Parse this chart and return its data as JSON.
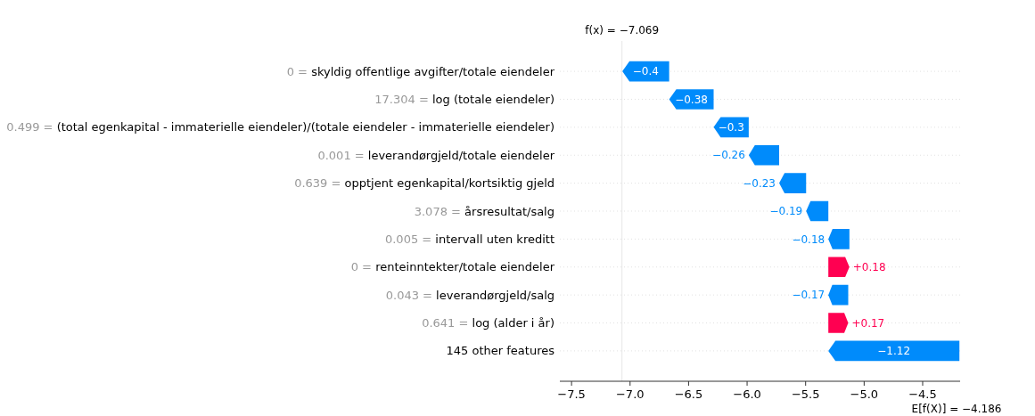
{
  "chart_data": {
    "type": "bar",
    "orientation": "horizontal",
    "categories": [
      "0 = skyldig offentlige avgifter/totale eiendeler",
      "17.304 = log (totale eiendeler)",
      "0.499 = (total egenkapital - immaterielle eiendeler)/(totale eiendeler - immaterielle eiendeler)",
      "0.001 = leverandørgjeld/totale eiendeler",
      "0.639 = opptjent egenkapital/kortsiktig gjeld",
      "3.078 = årsresultat/salg",
      "0.005 = intervall uten kreditt",
      "0 = renteinntekter/totale eiendeler",
      "0.043 = leverandørgjeld/salg",
      "0.641 = log (alder i år)",
      "145 other features"
    ],
    "values": [
      -0.4,
      -0.38,
      -0.3,
      -0.26,
      -0.23,
      -0.19,
      -0.18,
      0.18,
      -0.17,
      0.17,
      -1.12
    ],
    "base": [
      -6.666,
      -6.286,
      -5.986,
      -5.726,
      -5.496,
      -5.306,
      -5.126,
      -5.306,
      -5.136,
      -5.306,
      -4.186
    ],
    "colors": [
      "#008bfb",
      "#008bfb",
      "#008bfb",
      "#008bfb",
      "#008bfb",
      "#008bfb",
      "#008bfb",
      "#ff0051",
      "#008bfb",
      "#ff0051",
      "#008bfb"
    ],
    "value_labels": [
      "−0.4",
      "−0.38",
      "−0.3",
      "−0.26",
      "−0.23",
      "−0.19",
      "−0.18",
      "+0.18",
      "−0.17",
      "+0.17",
      "−1.12"
    ],
    "xlim": [
      -7.6,
      -4.18
    ],
    "xticks": [
      {
        "value": -7.5,
        "label": "−7.5"
      },
      {
        "value": -7.0,
        "label": "−7.0"
      },
      {
        "value": -6.5,
        "label": "−6.5"
      },
      {
        "value": -6.0,
        "label": "−6.0"
      },
      {
        "value": -5.5,
        "label": "−5.5"
      },
      {
        "value": -5.0,
        "label": "−5.0"
      },
      {
        "value": -4.5,
        "label": "−4.5"
      }
    ],
    "grid": "y",
    "ref_lines": [
      {
        "axis": "x",
        "value": -7.069,
        "label": "f(x) = −7.069",
        "color": "#e6e6e6"
      }
    ],
    "annotations": [
      "E[f(X)] = −4.186"
    ]
  }
}
